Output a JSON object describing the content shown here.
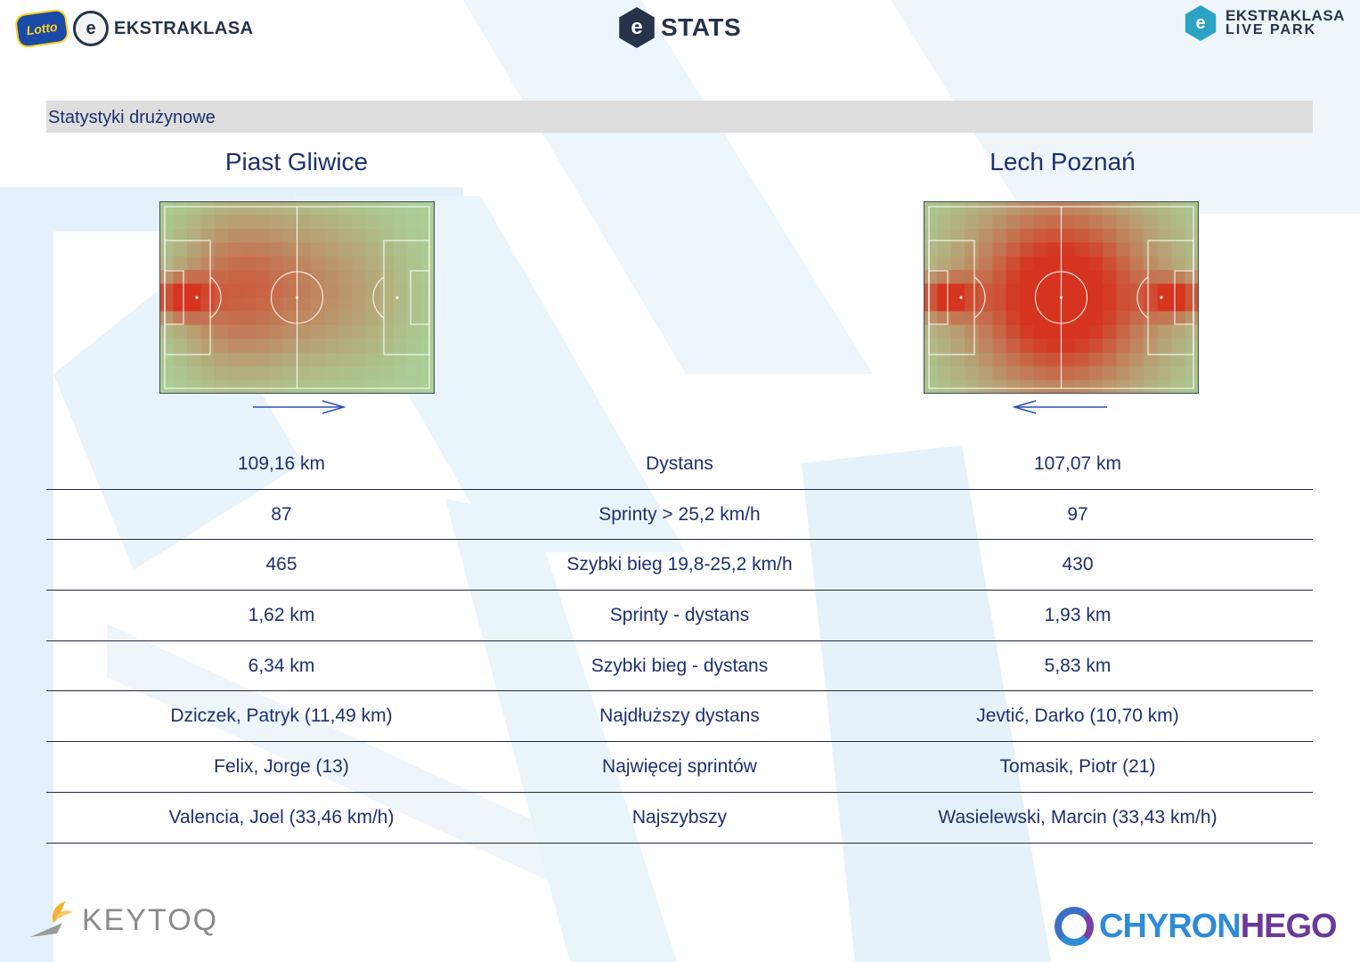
{
  "header": {
    "left_brand": "EKSTRAKLASA",
    "lotto_badge": "Lotto",
    "ball_letter": "e",
    "center_mark": "e",
    "center_title": "STATS",
    "right_mark": "e",
    "right_line1": "EKSTRAKLASA",
    "right_line2": "LIVE PARK"
  },
  "section": {
    "title": "Statystyki drużynowe"
  },
  "teams": {
    "left": {
      "name": "Piast Gliwice",
      "attack_direction": "right"
    },
    "right": {
      "name": "Lech Poznań",
      "attack_direction": "left"
    }
  },
  "stats": [
    {
      "left": "109,16 km",
      "label": "Dystans",
      "right": "107,07 km"
    },
    {
      "left": "87",
      "label": "Sprinty > 25,2 km/h",
      "right": "97"
    },
    {
      "left": "465",
      "label": "Szybki bieg 19,8-25,2 km/h",
      "right": "430"
    },
    {
      "left": "1,62 km",
      "label": "Sprinty - dystans",
      "right": "1,93 km"
    },
    {
      "left": "6,34 km",
      "label": "Szybki bieg - dystans",
      "right": "5,83 km"
    },
    {
      "left": "Dziczek, Patryk (11,49 km)",
      "label": "Najdłuższy dystans",
      "right": "Jevtić, Darko (10,70 km)"
    },
    {
      "left": "Felix, Jorge (13)",
      "label": "Najwięcej sprintów",
      "right": "Tomasik, Piotr (21)"
    },
    {
      "left": "Valencia, Joel (33,46 km/h)",
      "label": "Najszybszy",
      "right": "Wasielewski, Marcin (33,43 km/h)"
    }
  ],
  "footer": {
    "left_logo": "KEYTOQ",
    "right_logo_a": "CHYRON",
    "right_logo_b": "HEGO"
  },
  "colors": {
    "heat_low": "#a9d39a",
    "heat_high": "#d6341f",
    "text": "#1e2f6e",
    "bar": "#dedede"
  }
}
